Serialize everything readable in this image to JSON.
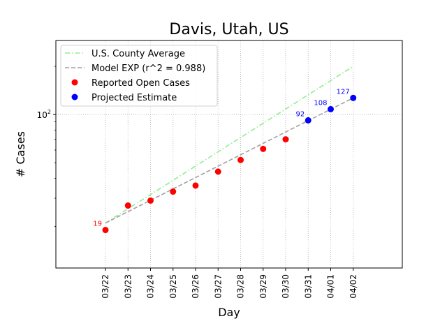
{
  "chart_data": {
    "type": "scatter",
    "title": "Davis, Utah, US",
    "xlabel": "Day",
    "ylabel": "# Cases",
    "yscale": "log",
    "ylim": [
      11,
      290
    ],
    "grid": true,
    "legend_position": "top-left",
    "x": [
      "03/22",
      "03/23",
      "03/24",
      "03/25",
      "03/26",
      "03/27",
      "03/28",
      "03/29",
      "03/30",
      "03/31",
      "04/01",
      "04/02"
    ],
    "y_ticks": [
      {
        "value": 100,
        "label": "10^2"
      }
    ],
    "series": [
      {
        "name": "U.S. County Average",
        "kind": "line",
        "style": "dashdot",
        "color": "#90ee90",
        "x": [
          "03/22",
          "04/02"
        ],
        "values": [
          21,
          200
        ]
      },
      {
        "name": "Model EXP (r^2 = 0.988)",
        "kind": "line",
        "style": "dashed",
        "color": "#a0a0a0",
        "x": [
          "03/22",
          "04/02"
        ],
        "values": [
          21,
          127
        ]
      },
      {
        "name": "Reported Open Cases",
        "kind": "points",
        "color": "#ff0000",
        "x": [
          "03/22",
          "03/23",
          "03/24",
          "03/25",
          "03/26",
          "03/27",
          "03/28",
          "03/29",
          "03/30"
        ],
        "values": [
          19,
          27,
          29,
          33,
          36,
          44,
          52,
          61,
          70
        ]
      },
      {
        "name": "Projected Estimate",
        "kind": "points",
        "color": "#0000ff",
        "x": [
          "03/31",
          "04/01",
          "04/02"
        ],
        "values": [
          92,
          108,
          127
        ]
      }
    ],
    "annotations": [
      {
        "x": "03/22",
        "y": 19,
        "text": "19",
        "color": "#ff0000"
      },
      {
        "x": "03/31",
        "y": 92,
        "text": "92",
        "color": "#0000ff"
      },
      {
        "x": "04/01",
        "y": 108,
        "text": "108",
        "color": "#0000ff"
      },
      {
        "x": "04/02",
        "y": 127,
        "text": "127",
        "color": "#0000ff"
      }
    ]
  }
}
